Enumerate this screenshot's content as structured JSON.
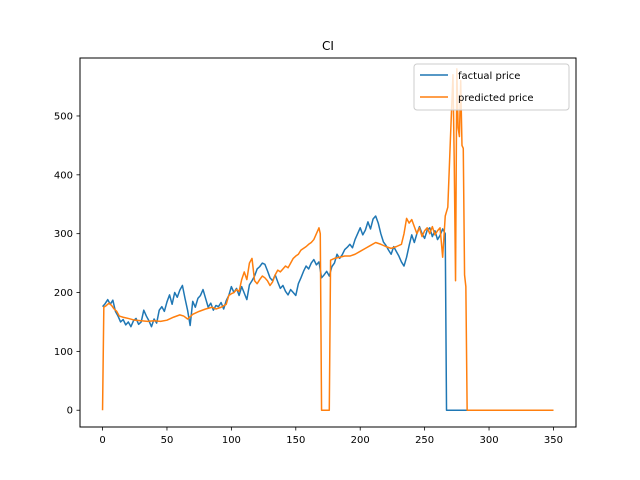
{
  "chart_data": {
    "type": "line",
    "title": "CI",
    "xlabel": "",
    "ylabel": "",
    "xlim": [
      -17.5,
      367.5
    ],
    "ylim": [
      -28.5,
      598.5
    ],
    "xticks": [
      0,
      50,
      100,
      150,
      200,
      250,
      300,
      350
    ],
    "yticks": [
      0,
      100,
      200,
      300,
      400,
      500
    ],
    "grid": false,
    "legend_position": "top-right",
    "series": [
      {
        "name": "factual price",
        "color": "#1f77b4",
        "points": [
          [
            0,
            176
          ],
          [
            2,
            181
          ],
          [
            4,
            188
          ],
          [
            6,
            180
          ],
          [
            8,
            187
          ],
          [
            10,
            168
          ],
          [
            12,
            160
          ],
          [
            14,
            150
          ],
          [
            16,
            154
          ],
          [
            18,
            145
          ],
          [
            20,
            150
          ],
          [
            22,
            142
          ],
          [
            24,
            152
          ],
          [
            26,
            156
          ],
          [
            28,
            146
          ],
          [
            30,
            150
          ],
          [
            32,
            170
          ],
          [
            34,
            160
          ],
          [
            36,
            152
          ],
          [
            38,
            142
          ],
          [
            40,
            155
          ],
          [
            42,
            148
          ],
          [
            44,
            170
          ],
          [
            46,
            176
          ],
          [
            48,
            168
          ],
          [
            50,
            184
          ],
          [
            52,
            196
          ],
          [
            54,
            180
          ],
          [
            56,
            200
          ],
          [
            58,
            192
          ],
          [
            60,
            204
          ],
          [
            62,
            212
          ],
          [
            64,
            190
          ],
          [
            66,
            170
          ],
          [
            68,
            144
          ],
          [
            70,
            185
          ],
          [
            72,
            175
          ],
          [
            74,
            190
          ],
          [
            76,
            195
          ],
          [
            78,
            205
          ],
          [
            80,
            190
          ],
          [
            82,
            175
          ],
          [
            84,
            182
          ],
          [
            86,
            170
          ],
          [
            88,
            178
          ],
          [
            90,
            176
          ],
          [
            92,
            183
          ],
          [
            94,
            172
          ],
          [
            96,
            186
          ],
          [
            98,
            195
          ],
          [
            100,
            210
          ],
          [
            102,
            200
          ],
          [
            104,
            207
          ],
          [
            106,
            195
          ],
          [
            108,
            210
          ],
          [
            110,
            199
          ],
          [
            112,
            188
          ],
          [
            114,
            213
          ],
          [
            116,
            220
          ],
          [
            118,
            228
          ],
          [
            120,
            240
          ],
          [
            122,
            244
          ],
          [
            124,
            250
          ],
          [
            126,
            248
          ],
          [
            128,
            237
          ],
          [
            130,
            225
          ],
          [
            132,
            220
          ],
          [
            134,
            230
          ],
          [
            136,
            218
          ],
          [
            138,
            207
          ],
          [
            140,
            212
          ],
          [
            142,
            202
          ],
          [
            144,
            196
          ],
          [
            146,
            205
          ],
          [
            148,
            200
          ],
          [
            150,
            195
          ],
          [
            152,
            215
          ],
          [
            154,
            225
          ],
          [
            156,
            236
          ],
          [
            158,
            245
          ],
          [
            160,
            240
          ],
          [
            162,
            250
          ],
          [
            164,
            256
          ],
          [
            166,
            247
          ],
          [
            168,
            252
          ],
          [
            170,
            225
          ],
          [
            172,
            230
          ],
          [
            174,
            236
          ],
          [
            176,
            228
          ],
          [
            178,
            244
          ],
          [
            180,
            250
          ],
          [
            182,
            265
          ],
          [
            184,
            258
          ],
          [
            186,
            264
          ],
          [
            188,
            273
          ],
          [
            190,
            277
          ],
          [
            192,
            282
          ],
          [
            194,
            276
          ],
          [
            196,
            290
          ],
          [
            198,
            300
          ],
          [
            200,
            310
          ],
          [
            202,
            298
          ],
          [
            204,
            306
          ],
          [
            206,
            320
          ],
          [
            208,
            308
          ],
          [
            210,
            325
          ],
          [
            212,
            330
          ],
          [
            214,
            318
          ],
          [
            216,
            300
          ],
          [
            218,
            286
          ],
          [
            220,
            280
          ],
          [
            222,
            272
          ],
          [
            224,
            265
          ],
          [
            226,
            278
          ],
          [
            228,
            270
          ],
          [
            230,
            262
          ],
          [
            232,
            252
          ],
          [
            234,
            245
          ],
          [
            236,
            260
          ],
          [
            238,
            280
          ],
          [
            240,
            298
          ],
          [
            242,
            285
          ],
          [
            244,
            300
          ],
          [
            246,
            312
          ],
          [
            248,
            300
          ],
          [
            250,
            292
          ],
          [
            252,
            306
          ],
          [
            254,
            310
          ],
          [
            256,
            295
          ],
          [
            258,
            305
          ],
          [
            260,
            290
          ],
          [
            262,
            297
          ],
          [
            264,
            308
          ],
          [
            266,
            300
          ],
          [
            267,
            0
          ],
          [
            350,
            0
          ]
        ]
      },
      {
        "name": "predicted price",
        "color": "#ff7f0e",
        "points": [
          [
            0,
            0
          ],
          [
            1,
            175
          ],
          [
            3,
            178
          ],
          [
            5,
            182
          ],
          [
            7,
            178
          ],
          [
            9,
            172
          ],
          [
            11,
            168
          ],
          [
            13,
            160
          ],
          [
            16,
            158
          ],
          [
            20,
            156
          ],
          [
            25,
            153
          ],
          [
            30,
            152
          ],
          [
            35,
            151
          ],
          [
            40,
            152
          ],
          [
            45,
            151
          ],
          [
            50,
            153
          ],
          [
            55,
            158
          ],
          [
            60,
            162
          ],
          [
            63,
            160
          ],
          [
            66,
            155
          ],
          [
            70,
            163
          ],
          [
            75,
            168
          ],
          [
            80,
            172
          ],
          [
            85,
            175
          ],
          [
            88,
            172
          ],
          [
            92,
            175
          ],
          [
            96,
            180
          ],
          [
            98,
            195
          ],
          [
            100,
            198
          ],
          [
            102,
            200
          ],
          [
            104,
            205
          ],
          [
            106,
            202
          ],
          [
            108,
            222
          ],
          [
            110,
            235
          ],
          [
            112,
            222
          ],
          [
            114,
            250
          ],
          [
            116,
            258
          ],
          [
            118,
            220
          ],
          [
            120,
            215
          ],
          [
            122,
            222
          ],
          [
            124,
            228
          ],
          [
            126,
            225
          ],
          [
            128,
            220
          ],
          [
            130,
            212
          ],
          [
            132,
            218
          ],
          [
            134,
            230
          ],
          [
            136,
            238
          ],
          [
            138,
            235
          ],
          [
            140,
            240
          ],
          [
            142,
            245
          ],
          [
            144,
            242
          ],
          [
            146,
            250
          ],
          [
            148,
            258
          ],
          [
            150,
            262
          ],
          [
            152,
            265
          ],
          [
            154,
            272
          ],
          [
            156,
            275
          ],
          [
            158,
            278
          ],
          [
            160,
            282
          ],
          [
            162,
            285
          ],
          [
            164,
            290
          ],
          [
            166,
            300
          ],
          [
            168,
            310
          ],
          [
            169,
            300
          ],
          [
            170,
            0
          ],
          [
            176,
            0
          ],
          [
            177,
            255
          ],
          [
            180,
            258
          ],
          [
            184,
            260
          ],
          [
            188,
            262
          ],
          [
            192,
            262
          ],
          [
            196,
            265
          ],
          [
            200,
            270
          ],
          [
            204,
            275
          ],
          [
            208,
            280
          ],
          [
            212,
            285
          ],
          [
            216,
            282
          ],
          [
            220,
            278
          ],
          [
            224,
            275
          ],
          [
            228,
            278
          ],
          [
            232,
            282
          ],
          [
            234,
            300
          ],
          [
            236,
            326
          ],
          [
            238,
            318
          ],
          [
            240,
            324
          ],
          [
            242,
            312
          ],
          [
            244,
            300
          ],
          [
            246,
            310
          ],
          [
            248,
            295
          ],
          [
            250,
            305
          ],
          [
            252,
            310
          ],
          [
            254,
            300
          ],
          [
            256,
            312
          ],
          [
            258,
            298
          ],
          [
            260,
            305
          ],
          [
            262,
            310
          ],
          [
            264,
            260
          ],
          [
            266,
            330
          ],
          [
            268,
            345
          ],
          [
            270,
            460
          ],
          [
            272,
            570
          ],
          [
            273,
            420
          ],
          [
            274,
            220
          ],
          [
            275,
            580
          ],
          [
            276,
            480
          ],
          [
            277,
            465
          ],
          [
            278,
            560
          ],
          [
            279,
            450
          ],
          [
            280,
            445
          ],
          [
            281,
            230
          ],
          [
            282,
            210
          ],
          [
            283,
            0
          ],
          [
            350,
            0
          ]
        ]
      }
    ]
  }
}
